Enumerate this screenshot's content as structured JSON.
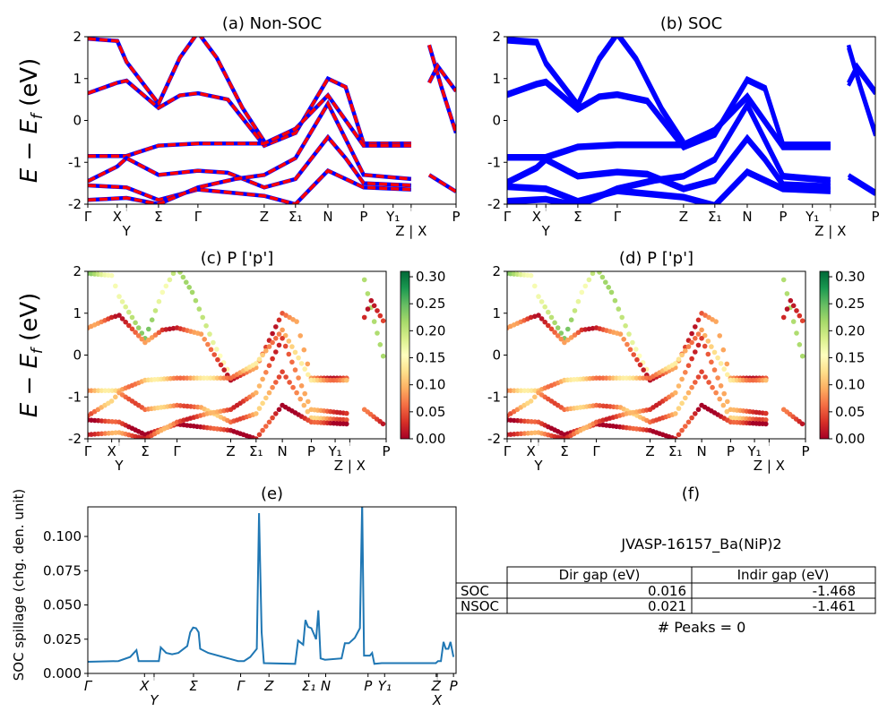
{
  "colors": {
    "nsoc_line": "#0000ff",
    "nsoc_dash": "#ff0000",
    "soc_line": "#0000ff",
    "spillage_line": "#1f77b4",
    "colormap": "RdYlGn"
  },
  "chart_data": [
    {
      "id": "a",
      "type": "line",
      "title": "(a) Non-SOC",
      "ylabel": {
        "main": "E − E",
        "sub": "f",
        "unit": " (eV)"
      },
      "ylim": [
        -2,
        2
      ],
      "yticks": [
        -2,
        -1,
        0,
        1,
        2
      ],
      "xlim": [
        0,
        1
      ],
      "xticks": [
        {
          "k": 0,
          "label": "Γ"
        },
        {
          "k": 0.08,
          "label": "X"
        },
        {
          "k": 0.105,
          "label": "Y"
        },
        {
          "k": 0.192,
          "label": "Σ"
        },
        {
          "k": 0.299,
          "label": "Γ"
        },
        {
          "k": 0.479,
          "label": "Z"
        },
        {
          "k": 0.564,
          "label": "Σ₁"
        },
        {
          "k": 0.652,
          "label": "N"
        },
        {
          "k": 0.749,
          "label": "P"
        },
        {
          "k": 0.829,
          "label": "Y₁"
        },
        {
          "k": 0.878,
          "label": "Z | X"
        },
        {
          "k": 1.0,
          "label": "P"
        }
      ],
      "style": "blue-solid-red-dashed"
    },
    {
      "id": "b",
      "type": "line",
      "title": "(b) SOC",
      "ylim": [
        -2,
        2
      ],
      "yticks": [
        -2,
        -1,
        0,
        1,
        2
      ],
      "xlim": [
        0,
        1
      ],
      "style": "blue-solid"
    },
    {
      "id": "c",
      "type": "scatter",
      "title": "(c)  P ['p']",
      "ylabel": {
        "main": "E − E",
        "sub": "f",
        "unit": " (eV)"
      },
      "ylim": [
        -2,
        2
      ],
      "yticks": [
        -2,
        -1,
        0,
        1,
        2
      ],
      "xlim": [
        0,
        1
      ],
      "colorbar": {
        "range": [
          0,
          0.31
        ],
        "ticks": [
          "0.00",
          "0.05",
          "0.10",
          "0.15",
          "0.20",
          "0.25",
          "0.30"
        ]
      }
    },
    {
      "id": "d",
      "type": "scatter",
      "title": "(d) P ['p']",
      "ylim": [
        -2,
        2
      ],
      "yticks": [
        -2,
        -1,
        0,
        1,
        2
      ],
      "xlim": [
        0,
        1
      ],
      "colorbar": {
        "range": [
          0,
          0.31
        ],
        "ticks": [
          "0.00",
          "0.05",
          "0.10",
          "0.15",
          "0.20",
          "0.25",
          "0.30"
        ]
      }
    },
    {
      "id": "e",
      "type": "line",
      "title": "(e)",
      "ylabel": "SOC spillage (chg. den. unit)",
      "xlim": [
        0,
        1
      ],
      "ylim": [
        0,
        0.1216
      ],
      "yticks": [
        "0.000",
        "0.025",
        "0.050",
        "0.075",
        "0.100"
      ],
      "xticks": [
        {
          "k": 0,
          "label": "Γ"
        },
        {
          "k": 0.154,
          "label": "X"
        },
        {
          "k": 0.18,
          "label": "Y"
        },
        {
          "k": 0.287,
          "label": "Σ"
        },
        {
          "k": 0.415,
          "label": "Γ"
        },
        {
          "k": 0.492,
          "label": "Z"
        },
        {
          "k": 0.6,
          "label": "Σ₁"
        },
        {
          "k": 0.646,
          "label": "N"
        },
        {
          "k": 0.761,
          "label": "P"
        },
        {
          "k": 0.806,
          "label": "Y₁"
        },
        {
          "k": 0.946,
          "label": "Z"
        },
        {
          "k": 0.949,
          "label": "X"
        },
        {
          "k": 0.993,
          "label": "P"
        }
      ],
      "x": [
        0,
        0.083,
        0.115,
        0.132,
        0.138,
        0.193,
        0.198,
        0.213,
        0.229,
        0.246,
        0.27,
        0.278,
        0.286,
        0.294,
        0.301,
        0.305,
        0.327,
        0.408,
        0.424,
        0.441,
        0.459,
        0.465,
        0.472,
        0.478,
        0.563,
        0.571,
        0.585,
        0.591,
        0.598,
        0.607,
        0.62,
        0.626,
        0.632,
        0.644,
        0.689,
        0.698,
        0.709,
        0.725,
        0.739,
        0.745,
        0.75,
        0.766,
        0.772,
        0.778,
        0.798,
        0.945,
        0.951,
        0.959,
        0.966,
        0.972,
        0.979,
        0.985,
        0.993
      ],
      "y": [
        0.0085,
        0.009,
        0.012,
        0.017,
        0.009,
        0.009,
        0.019,
        0.015,
        0.014,
        0.015,
        0.02,
        0.03,
        0.0335,
        0.033,
        0.03,
        0.018,
        0.015,
        0.009,
        0.009,
        0.012,
        0.018,
        0.117,
        0.03,
        0.0075,
        0.007,
        0.024,
        0.021,
        0.039,
        0.034,
        0.033,
        0.025,
        0.046,
        0.011,
        0.01,
        0.011,
        0.022,
        0.022,
        0.026,
        0.033,
        0.125,
        0.013,
        0.013,
        0.015,
        0.007,
        0.0075,
        0.0075,
        0.009,
        0.009,
        0.023,
        0.018,
        0.018,
        0.023,
        0.012
      ]
    }
  ],
  "bands": [
    {
      "w": 0.2,
      "pts": [
        [
          0,
          1.95
        ],
        [
          0.08,
          1.9
        ],
        [
          0.105,
          1.4
        ],
        [
          0.192,
          0.4
        ],
        [
          0.25,
          1.5
        ],
        [
          0.299,
          2.1
        ]
      ]
    },
    {
      "w": 0.18,
      "pts": [
        [
          0.299,
          2.1
        ],
        [
          0.35,
          1.5
        ],
        [
          0.42,
          0.3
        ],
        [
          0.479,
          -0.5
        ]
      ]
    },
    {
      "w": 0.05,
      "pts": [
        [
          0,
          0.65
        ],
        [
          0.08,
          0.9
        ],
        [
          0.105,
          0.95
        ],
        [
          0.192,
          0.3
        ],
        [
          0.25,
          0.6
        ],
        [
          0.299,
          0.65
        ],
        [
          0.38,
          0.5
        ],
        [
          0.479,
          -0.6
        ],
        [
          0.564,
          -0.3
        ],
        [
          0.652,
          1.0
        ],
        [
          0.7,
          0.8
        ],
        [
          0.749,
          -0.55
        ],
        [
          0.878,
          -0.55
        ]
      ]
    },
    {
      "w": 0.1,
      "pts": [
        [
          0,
          -0.85
        ],
        [
          0.105,
          -0.85
        ],
        [
          0.192,
          -0.6
        ],
        [
          0.299,
          -0.55
        ],
        [
          0.479,
          -0.55
        ],
        [
          0.564,
          -0.2
        ],
        [
          0.652,
          0.6
        ],
        [
          0.749,
          -0.6
        ],
        [
          0.878,
          -0.6
        ]
      ]
    },
    {
      "w": 0.08,
      "pts": [
        [
          0,
          -1.45
        ],
        [
          0.08,
          -1.1
        ],
        [
          0.105,
          -0.9
        ],
        [
          0.192,
          -1.3
        ],
        [
          0.299,
          -1.2
        ],
        [
          0.38,
          -1.25
        ],
        [
          0.479,
          -1.6
        ],
        [
          0.564,
          -1.4
        ],
        [
          0.652,
          -0.4
        ],
        [
          0.7,
          -0.9
        ],
        [
          0.749,
          -1.5
        ],
        [
          0.878,
          -1.55
        ]
      ]
    },
    {
      "w": 0.02,
      "pts": [
        [
          0,
          -1.55
        ],
        [
          0.105,
          -1.6
        ],
        [
          0.192,
          -1.9
        ],
        [
          0.299,
          -1.65
        ],
        [
          0.479,
          -1.8
        ],
        [
          0.564,
          -2.0
        ],
        [
          0.652,
          -1.2
        ],
        [
          0.749,
          -1.6
        ],
        [
          0.878,
          -1.65
        ]
      ]
    },
    {
      "w": 0.06,
      "pts": [
        [
          0,
          -1.9
        ],
        [
          0.105,
          -1.85
        ],
        [
          0.192,
          -2.0
        ],
        [
          0.299,
          -1.6
        ],
        [
          0.4,
          -1.4
        ],
        [
          0.479,
          -1.3
        ],
        [
          0.564,
          -0.9
        ],
        [
          0.652,
          0.4
        ],
        [
          0.749,
          -1.3
        ],
        [
          0.878,
          -1.4
        ]
      ]
    },
    {
      "w": 0.25,
      "pts": [
        [
          0.927,
          1.8
        ],
        [
          0.96,
          0.8
        ],
        [
          1.0,
          -0.3
        ]
      ]
    },
    {
      "w": 0.05,
      "pts": [
        [
          0.927,
          0.9
        ],
        [
          0.95,
          1.3
        ],
        [
          1.0,
          0.7
        ]
      ]
    },
    {
      "w": 0.03,
      "pts": [
        [
          0.927,
          -1.3
        ],
        [
          1.0,
          -1.7
        ]
      ]
    }
  ],
  "panel_f": {
    "label": "(f)",
    "material": "JVASP-16157_Ba(NiP)2",
    "columns": [
      "Dir gap (eV)",
      "Indir gap (eV)"
    ],
    "rows": [
      {
        "label": "SOC",
        "dir": "0.016",
        "indir": "-1.468"
      },
      {
        "label": "NSOC",
        "dir": "0.021",
        "indir": "-1.461"
      }
    ],
    "peaks": "# Peaks = 0"
  }
}
